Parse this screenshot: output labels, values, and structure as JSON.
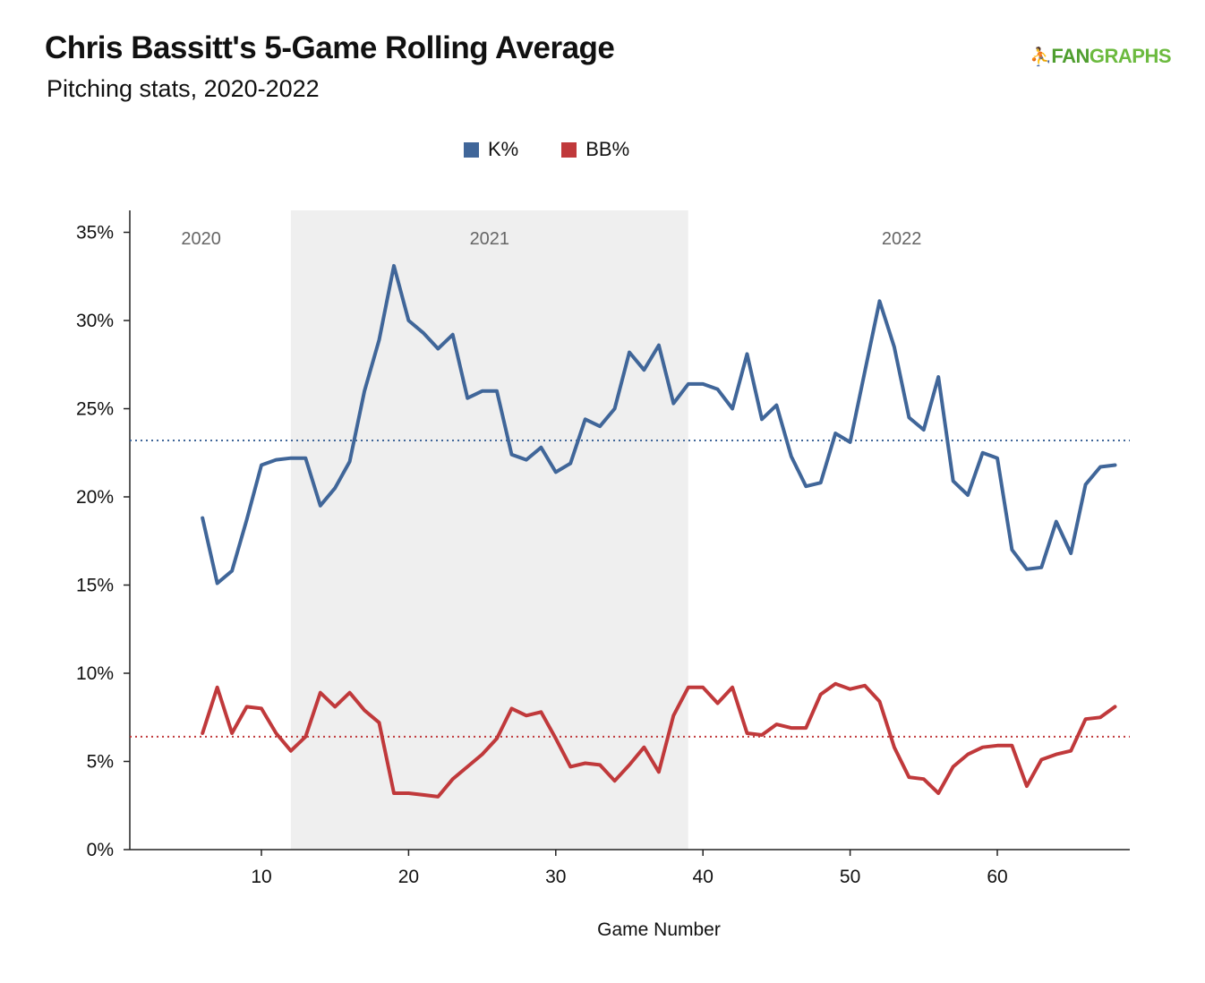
{
  "header": {
    "title": "Chris Bassitt's 5-Game Rolling Average",
    "subtitle": "Pitching stats, 2020-2022",
    "brand_fan": "FAN",
    "brand_graphs": "GRAPHS"
  },
  "legend": [
    {
      "name": "K%",
      "color": "#406699"
    },
    {
      "name": "BB%",
      "color": "#c0393b"
    }
  ],
  "chart_data": {
    "type": "line",
    "title": "Chris Bassitt's 5-Game Rolling Average",
    "subtitle": "Pitching stats, 2020-2022",
    "xlabel": "Game Number",
    "ylabel": "",
    "xlim": [
      1,
      69
    ],
    "ylim": [
      0,
      0.36
    ],
    "x_ticks": [
      10,
      20,
      30,
      40,
      50,
      60
    ],
    "y_ticks": [
      0,
      0.05,
      0.1,
      0.15,
      0.2,
      0.25,
      0.3,
      0.35
    ],
    "y_tick_labels": [
      "0%",
      "5%",
      "10%",
      "15%",
      "20%",
      "25%",
      "30%",
      "35%"
    ],
    "x": [
      6,
      7,
      8,
      9,
      10,
      11,
      12,
      13,
      14,
      15,
      16,
      17,
      18,
      19,
      20,
      21,
      22,
      23,
      24,
      25,
      26,
      27,
      28,
      29,
      30,
      31,
      32,
      33,
      34,
      35,
      36,
      37,
      38,
      39,
      40,
      41,
      42,
      43,
      44,
      45,
      46,
      47,
      48,
      49,
      50,
      51,
      52,
      53,
      54,
      55,
      56,
      57,
      58,
      59,
      60,
      61,
      62,
      63,
      64,
      65,
      66,
      67,
      68
    ],
    "series": [
      {
        "name": "K%",
        "color": "#406699",
        "mean": 0.232,
        "values": [
          0.188,
          0.151,
          0.158,
          0.187,
          0.218,
          0.221,
          0.222,
          0.222,
          0.195,
          0.205,
          0.22,
          0.26,
          0.289,
          0.331,
          0.3,
          0.293,
          0.284,
          0.292,
          0.256,
          0.26,
          0.26,
          0.224,
          0.221,
          0.228,
          0.214,
          0.219,
          0.244,
          0.24,
          0.25,
          0.282,
          0.272,
          0.286,
          0.253,
          0.264,
          0.264,
          0.261,
          0.25,
          0.281,
          0.244,
          0.252,
          0.223,
          0.206,
          0.208,
          0.236,
          0.231,
          0.271,
          0.311,
          0.285,
          0.245,
          0.238,
          0.268,
          0.209,
          0.201,
          0.225,
          0.222,
          0.17,
          0.159,
          0.16,
          0.186,
          0.168,
          0.207,
          0.217,
          0.218
        ]
      },
      {
        "name": "BB%",
        "color": "#c0393b",
        "mean": 0.064,
        "values": [
          0.066,
          0.092,
          0.066,
          0.081,
          0.08,
          0.066,
          0.056,
          0.064,
          0.089,
          0.081,
          0.089,
          0.079,
          0.072,
          0.032,
          0.032,
          0.031,
          0.03,
          0.04,
          0.047,
          0.054,
          0.063,
          0.08,
          0.076,
          0.078,
          0.063,
          0.047,
          0.049,
          0.048,
          0.039,
          0.048,
          0.058,
          0.044,
          0.076,
          0.092,
          0.092,
          0.083,
          0.092,
          0.066,
          0.065,
          0.071,
          0.069,
          0.069,
          0.088,
          0.094,
          0.091,
          0.093,
          0.084,
          0.058,
          0.041,
          0.04,
          0.032,
          0.047,
          0.054,
          0.058,
          0.059,
          0.059,
          0.036,
          0.051,
          0.054,
          0.056,
          0.074,
          0.075,
          0.081
        ]
      }
    ],
    "shaded_regions": [
      {
        "x_start": 12,
        "x_end": 39,
        "color": "#efefef"
      }
    ],
    "era_labels": [
      {
        "label": "2020",
        "x": 5.9
      },
      {
        "label": "2021",
        "x": 25.5
      },
      {
        "label": "2022",
        "x": 53.5
      }
    ],
    "grid": false,
    "legend_position": "top"
  }
}
